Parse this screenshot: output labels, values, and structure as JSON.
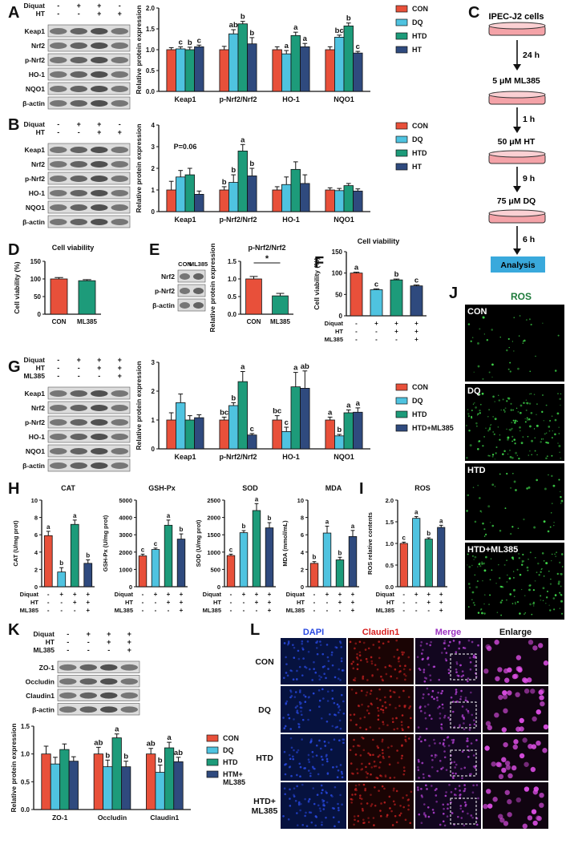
{
  "colors": {
    "con": "#e8503a",
    "dq": "#4fc3e0",
    "htd": "#1d9b7a",
    "ht": "#2f4a7e",
    "axis": "#111111",
    "flowbox": "#f4a3a8",
    "analysis": "#39a9dc"
  },
  "panel_labels": {
    "A": "A",
    "B": "B",
    "C": "C",
    "D": "D",
    "E": "E",
    "F": "F",
    "G": "G",
    "H": "H",
    "I": "I",
    "J": "J",
    "K": "K",
    "L": "L"
  },
  "blot_A": {
    "header_rows": [
      {
        "label": "Diquat",
        "signs": [
          "-",
          "+",
          "+",
          "-"
        ]
      },
      {
        "label": "HT",
        "signs": [
          "-",
          "-",
          "+",
          "+"
        ]
      }
    ],
    "bands": [
      "Keap1",
      "Nrf2",
      "p-Nrf2",
      "HO-1",
      "NQO1",
      "β-actin"
    ]
  },
  "blot_B": {
    "header_rows": [
      {
        "label": "Diquat",
        "signs": [
          "-",
          "+",
          "+",
          "-"
        ]
      },
      {
        "label": "HT",
        "signs": [
          "-",
          "-",
          "+",
          "+"
        ]
      }
    ],
    "bands": [
      "Keap1",
      "Nrf2",
      "p-Nrf2",
      "HO-1",
      "NQO1",
      "β-actin"
    ]
  },
  "blot_E": {
    "lanes": [
      "CON",
      "ML385"
    ],
    "bands": [
      "Nrf2",
      "p-Nrf2",
      "β-actin"
    ]
  },
  "blot_G": {
    "header_rows": [
      {
        "label": "Diquat",
        "signs": [
          "-",
          "+",
          "+",
          "+"
        ]
      },
      {
        "label": "HT",
        "signs": [
          "-",
          "-",
          "+",
          "+"
        ]
      },
      {
        "label": "ML385",
        "signs": [
          "-",
          "-",
          "-",
          "+"
        ]
      }
    ],
    "bands": [
      "Keap1",
      "Nrf2",
      "p-Nrf2",
      "HO-1",
      "NQO1",
      "β-actin"
    ]
  },
  "blot_K": {
    "header_rows": [
      {
        "label": "Diquat",
        "signs": [
          "-",
          "+",
          "+",
          "+"
        ]
      },
      {
        "label": "HT",
        "signs": [
          "-",
          "-",
          "+",
          "+"
        ]
      },
      {
        "label": "ML385",
        "signs": [
          "-",
          "-",
          "-",
          "+"
        ]
      }
    ],
    "bands": [
      "ZO-1",
      "Occludin",
      "Claudin1",
      "β-actin"
    ]
  },
  "flow": {
    "cells": "IPEC-J2 cells",
    "steps": [
      {
        "time": "24 h",
        "agent": "5 μM ML385"
      },
      {
        "time": "1 h",
        "agent": "50 μM HT"
      },
      {
        "time": "9 h",
        "agent": "75 μM DQ"
      },
      {
        "time": "6 h",
        "agent": "Analysis"
      }
    ]
  },
  "panel_J": {
    "title": "ROS",
    "labels": [
      "CON",
      "DQ",
      "HTD",
      "HTD+ML385"
    ]
  },
  "panel_L": {
    "columns": [
      "DAPI",
      "Claudin1",
      "Merge",
      "Enlarge"
    ],
    "rows": [
      "CON",
      "DQ",
      "HTD",
      "HTD+\nML385"
    ]
  },
  "chart_data": [
    {
      "id": "A",
      "type": "bar",
      "ylabel": "Relative protein expression",
      "ylim": [
        0,
        2.0
      ],
      "yticks": [
        "0.0",
        "0.5",
        "1.0",
        "1.5",
        "2.0"
      ],
      "categories": [
        "Keap1",
        "p-Nrf2/Nrf2",
        "HO-1",
        "NQO1"
      ],
      "legend": [
        "CON",
        "DQ",
        "HTD",
        "HT"
      ],
      "series": [
        {
          "name": "CON",
          "values": [
            1.0,
            1.0,
            1.0,
            1.0
          ],
          "err": [
            0.05,
            0.08,
            0.07,
            0.07
          ]
        },
        {
          "name": "DQ",
          "values": [
            1.02,
            1.38,
            0.9,
            1.3
          ],
          "err": [
            0.05,
            0.1,
            0.08,
            0.05
          ]
        },
        {
          "name": "HTD",
          "values": [
            1.0,
            1.62,
            1.34,
            1.57
          ],
          "err": [
            0.06,
            0.06,
            0.08,
            0.07
          ]
        },
        {
          "name": "HT",
          "values": [
            1.07,
            1.14,
            1.07,
            0.92
          ],
          "err": [
            0.04,
            0.15,
            0.08,
            0.04
          ]
        }
      ],
      "sig": [
        [
          "",
          "",
          "",
          ""
        ],
        [
          "c",
          "ab",
          "a",
          "bc"
        ],
        [
          "b",
          "b",
          "a",
          "b"
        ],
        [
          "c",
          "b",
          "a",
          "c"
        ]
      ]
    },
    {
      "id": "B",
      "type": "bar",
      "ylabel": "Relative protein expression",
      "ylim": [
        0,
        4
      ],
      "yticks": [
        "0",
        "1",
        "2",
        "3",
        "4"
      ],
      "categories": [
        "Keap1",
        "p-Nrf2/Nrf2",
        "HO-1",
        "NQO1"
      ],
      "legend": [
        "CON",
        "DQ",
        "HTD",
        "HT"
      ],
      "series": [
        {
          "name": "CON",
          "values": [
            1.0,
            1.0,
            1.0,
            1.0
          ],
          "err": [
            0.4,
            0.15,
            0.15,
            0.1
          ]
        },
        {
          "name": "DQ",
          "values": [
            1.6,
            1.35,
            1.25,
            0.97
          ],
          "err": [
            0.3,
            0.35,
            0.35,
            0.1
          ]
        },
        {
          "name": "HTD",
          "values": [
            1.7,
            2.8,
            1.95,
            1.2
          ],
          "err": [
            0.3,
            0.3,
            0.35,
            0.1
          ]
        },
        {
          "name": "HT",
          "values": [
            0.8,
            1.65,
            1.3,
            0.95
          ],
          "err": [
            0.15,
            0.35,
            0.4,
            0.1
          ]
        }
      ],
      "sig": [
        [
          "",
          "b",
          "",
          ""
        ],
        [
          "",
          "b",
          "",
          ""
        ],
        [
          "",
          "a",
          "",
          ""
        ],
        [
          "",
          "b",
          "",
          ""
        ]
      ],
      "annotation": {
        "text": "P=0.06",
        "category": 0
      }
    },
    {
      "id": "D",
      "type": "bar",
      "title": "Cell viability",
      "ylabel": "Cell viability (%)",
      "ylim": [
        0,
        150
      ],
      "yticks": [
        "0",
        "50",
        "100",
        "150"
      ],
      "categories": [
        "CON",
        "ML385"
      ],
      "values": [
        100,
        95
      ],
      "err": [
        4,
        3
      ],
      "colors": [
        "con",
        "htd"
      ]
    },
    {
      "id": "E",
      "type": "bar",
      "title": "p-Nrf2/Nrf2",
      "ylabel": "Relative protein expression",
      "ylim": [
        0,
        1.5
      ],
      "yticks": [
        "0.0",
        "0.5",
        "1.0",
        "1.5"
      ],
      "categories": [
        "CON",
        "ML385"
      ],
      "values": [
        1.0,
        0.52
      ],
      "err": [
        0.07,
        0.07
      ],
      "colors": [
        "con",
        "htd"
      ],
      "star": "*"
    },
    {
      "id": "F",
      "type": "bar",
      "title": "Cell viability",
      "ylabel": "Cell viability (%)",
      "ylim": [
        0,
        150
      ],
      "yticks": [
        "0",
        "50",
        "100",
        "150"
      ],
      "categories": [
        "",
        "",
        "",
        ""
      ],
      "values": [
        100,
        61,
        84,
        70
      ],
      "err": [
        2,
        2,
        2,
        2
      ],
      "colors": [
        "con",
        "dq",
        "htd",
        "ht"
      ],
      "sig": [
        "a",
        "c",
        "b",
        "c"
      ],
      "header_rows": [
        {
          "label": "Diquat",
          "signs": [
            "-",
            "+",
            "+",
            "+"
          ]
        },
        {
          "label": "HT",
          "signs": [
            "-",
            "-",
            "+",
            "+"
          ]
        },
        {
          "label": "ML385",
          "signs": [
            "-",
            "-",
            "-",
            "+"
          ]
        }
      ]
    },
    {
      "id": "G",
      "type": "bar",
      "ylabel": "Relative protein expression",
      "ylim": [
        0,
        3
      ],
      "yticks": [
        "0",
        "1",
        "2",
        "3"
      ],
      "categories": [
        "Keap1",
        "p-Nrf2/Nrf2",
        "HO-1",
        "NQO1"
      ],
      "legend": [
        "CON",
        "DQ",
        "HTD",
        "HTD+ML385"
      ],
      "series": [
        {
          "name": "CON",
          "values": [
            1.0,
            1.0,
            1.0,
            1.0
          ],
          "err": [
            0.25,
            0.1,
            0.15,
            0.1
          ]
        },
        {
          "name": "DQ",
          "values": [
            1.6,
            1.5,
            0.6,
            0.45
          ],
          "err": [
            0.3,
            0.1,
            0.15,
            0.05
          ]
        },
        {
          "name": "HTD",
          "values": [
            1.0,
            2.33,
            2.15,
            1.25
          ],
          "err": [
            0.15,
            0.35,
            0.5,
            0.1
          ]
        },
        {
          "name": "HTD+ML385",
          "values": [
            1.08,
            0.48,
            2.1,
            1.27
          ],
          "err": [
            0.1,
            0.05,
            0.6,
            0.15
          ]
        }
      ],
      "sig": [
        [
          "",
          "bc",
          "bc",
          "a"
        ],
        [
          "",
          "b",
          "c",
          "b"
        ],
        [
          "",
          "a",
          "a",
          "a"
        ],
        [
          "",
          "c",
          "ab",
          "a"
        ]
      ]
    },
    {
      "id": "H-CAT",
      "type": "bar",
      "title": "CAT",
      "ylabel": "CAT (U/mg prot)",
      "ylim": [
        0,
        10
      ],
      "yticks": [
        "0",
        "2",
        "4",
        "6",
        "8",
        "10"
      ],
      "values": [
        5.9,
        1.7,
        7.2,
        2.7
      ],
      "err": [
        0.5,
        0.5,
        0.5,
        0.4
      ],
      "colors": [
        "con",
        "dq",
        "htd",
        "ht"
      ],
      "sig": [
        "a",
        "b",
        "a",
        "b"
      ]
    },
    {
      "id": "H-GSH",
      "type": "bar",
      "title": "GSH-Px",
      "ylabel": "GSH-Px (U/mg prot)",
      "ylim": [
        0,
        5000
      ],
      "yticks": [
        "0",
        "1000",
        "2000",
        "3000",
        "4000",
        "5000"
      ],
      "values": [
        1780,
        2150,
        3550,
        2750
      ],
      "err": [
        100,
        80,
        300,
        300
      ],
      "colors": [
        "con",
        "dq",
        "htd",
        "ht"
      ],
      "sig": [
        "c",
        "c",
        "a",
        "b"
      ]
    },
    {
      "id": "H-SOD",
      "type": "bar",
      "title": "SOD",
      "ylabel": "SOD (U/mg prot)",
      "ylim": [
        0,
        2500
      ],
      "yticks": [
        "0",
        "500",
        "1000",
        "1500",
        "2000",
        "2500"
      ],
      "values": [
        900,
        1560,
        2200,
        1700
      ],
      "err": [
        40,
        60,
        200,
        150
      ],
      "colors": [
        "con",
        "dq",
        "htd",
        "ht"
      ],
      "sig": [
        "c",
        "b",
        "a",
        "b"
      ]
    },
    {
      "id": "H-MDA",
      "type": "bar",
      "title": "MDA",
      "ylabel": "MDA (mmol/mL)",
      "ylim": [
        0,
        10
      ],
      "yticks": [
        "0",
        "2",
        "4",
        "6",
        "8",
        "10"
      ],
      "values": [
        2.7,
        6.2,
        3.1,
        5.8
      ],
      "err": [
        0.2,
        0.8,
        0.3,
        0.7
      ],
      "colors": [
        "con",
        "dq",
        "htd",
        "ht"
      ],
      "sig": [
        "b",
        "a",
        "b",
        "a"
      ]
    },
    {
      "id": "I",
      "type": "bar",
      "title": "ROS",
      "ylabel": "ROS relative contents",
      "ylim": [
        0,
        2.0
      ],
      "yticks": [
        "0.0",
        "0.5",
        "1.0",
        "1.5",
        "2.0"
      ],
      "values": [
        1.0,
        1.58,
        1.1,
        1.37
      ],
      "err": [
        0.03,
        0.04,
        0.03,
        0.05
      ],
      "colors": [
        "con",
        "dq",
        "htd",
        "ht"
      ],
      "sig": [
        "c",
        "a",
        "b",
        "a"
      ]
    },
    {
      "id": "K",
      "type": "bar",
      "ylabel": "Relative protein expression",
      "ylim": [
        0,
        1.5
      ],
      "yticks": [
        "0.0",
        "0.5",
        "1.0",
        "1.5"
      ],
      "categories": [
        "ZO-1",
        "Occludin",
        "Claudin1"
      ],
      "legend": [
        "CON",
        "DQ",
        "HTD",
        "HTM+\nML385"
      ],
      "series": [
        {
          "name": "CON",
          "values": [
            1.0,
            1.0,
            1.0
          ],
          "err": [
            0.14,
            0.12,
            0.1
          ]
        },
        {
          "name": "DQ",
          "values": [
            0.82,
            0.77,
            0.67
          ],
          "err": [
            0.12,
            0.12,
            0.13
          ]
        },
        {
          "name": "HTD",
          "values": [
            1.08,
            1.29,
            1.11
          ],
          "err": [
            0.1,
            0.07,
            0.1
          ]
        },
        {
          "name": "HTM+\nML385",
          "values": [
            0.87,
            0.77,
            0.86
          ],
          "err": [
            0.08,
            0.1,
            0.08
          ]
        }
      ],
      "sig": [
        [
          "",
          "ab",
          "ab"
        ],
        [
          "",
          "b",
          "b"
        ],
        [
          "",
          "a",
          "a"
        ],
        [
          "",
          "b",
          "ab"
        ]
      ]
    }
  ]
}
